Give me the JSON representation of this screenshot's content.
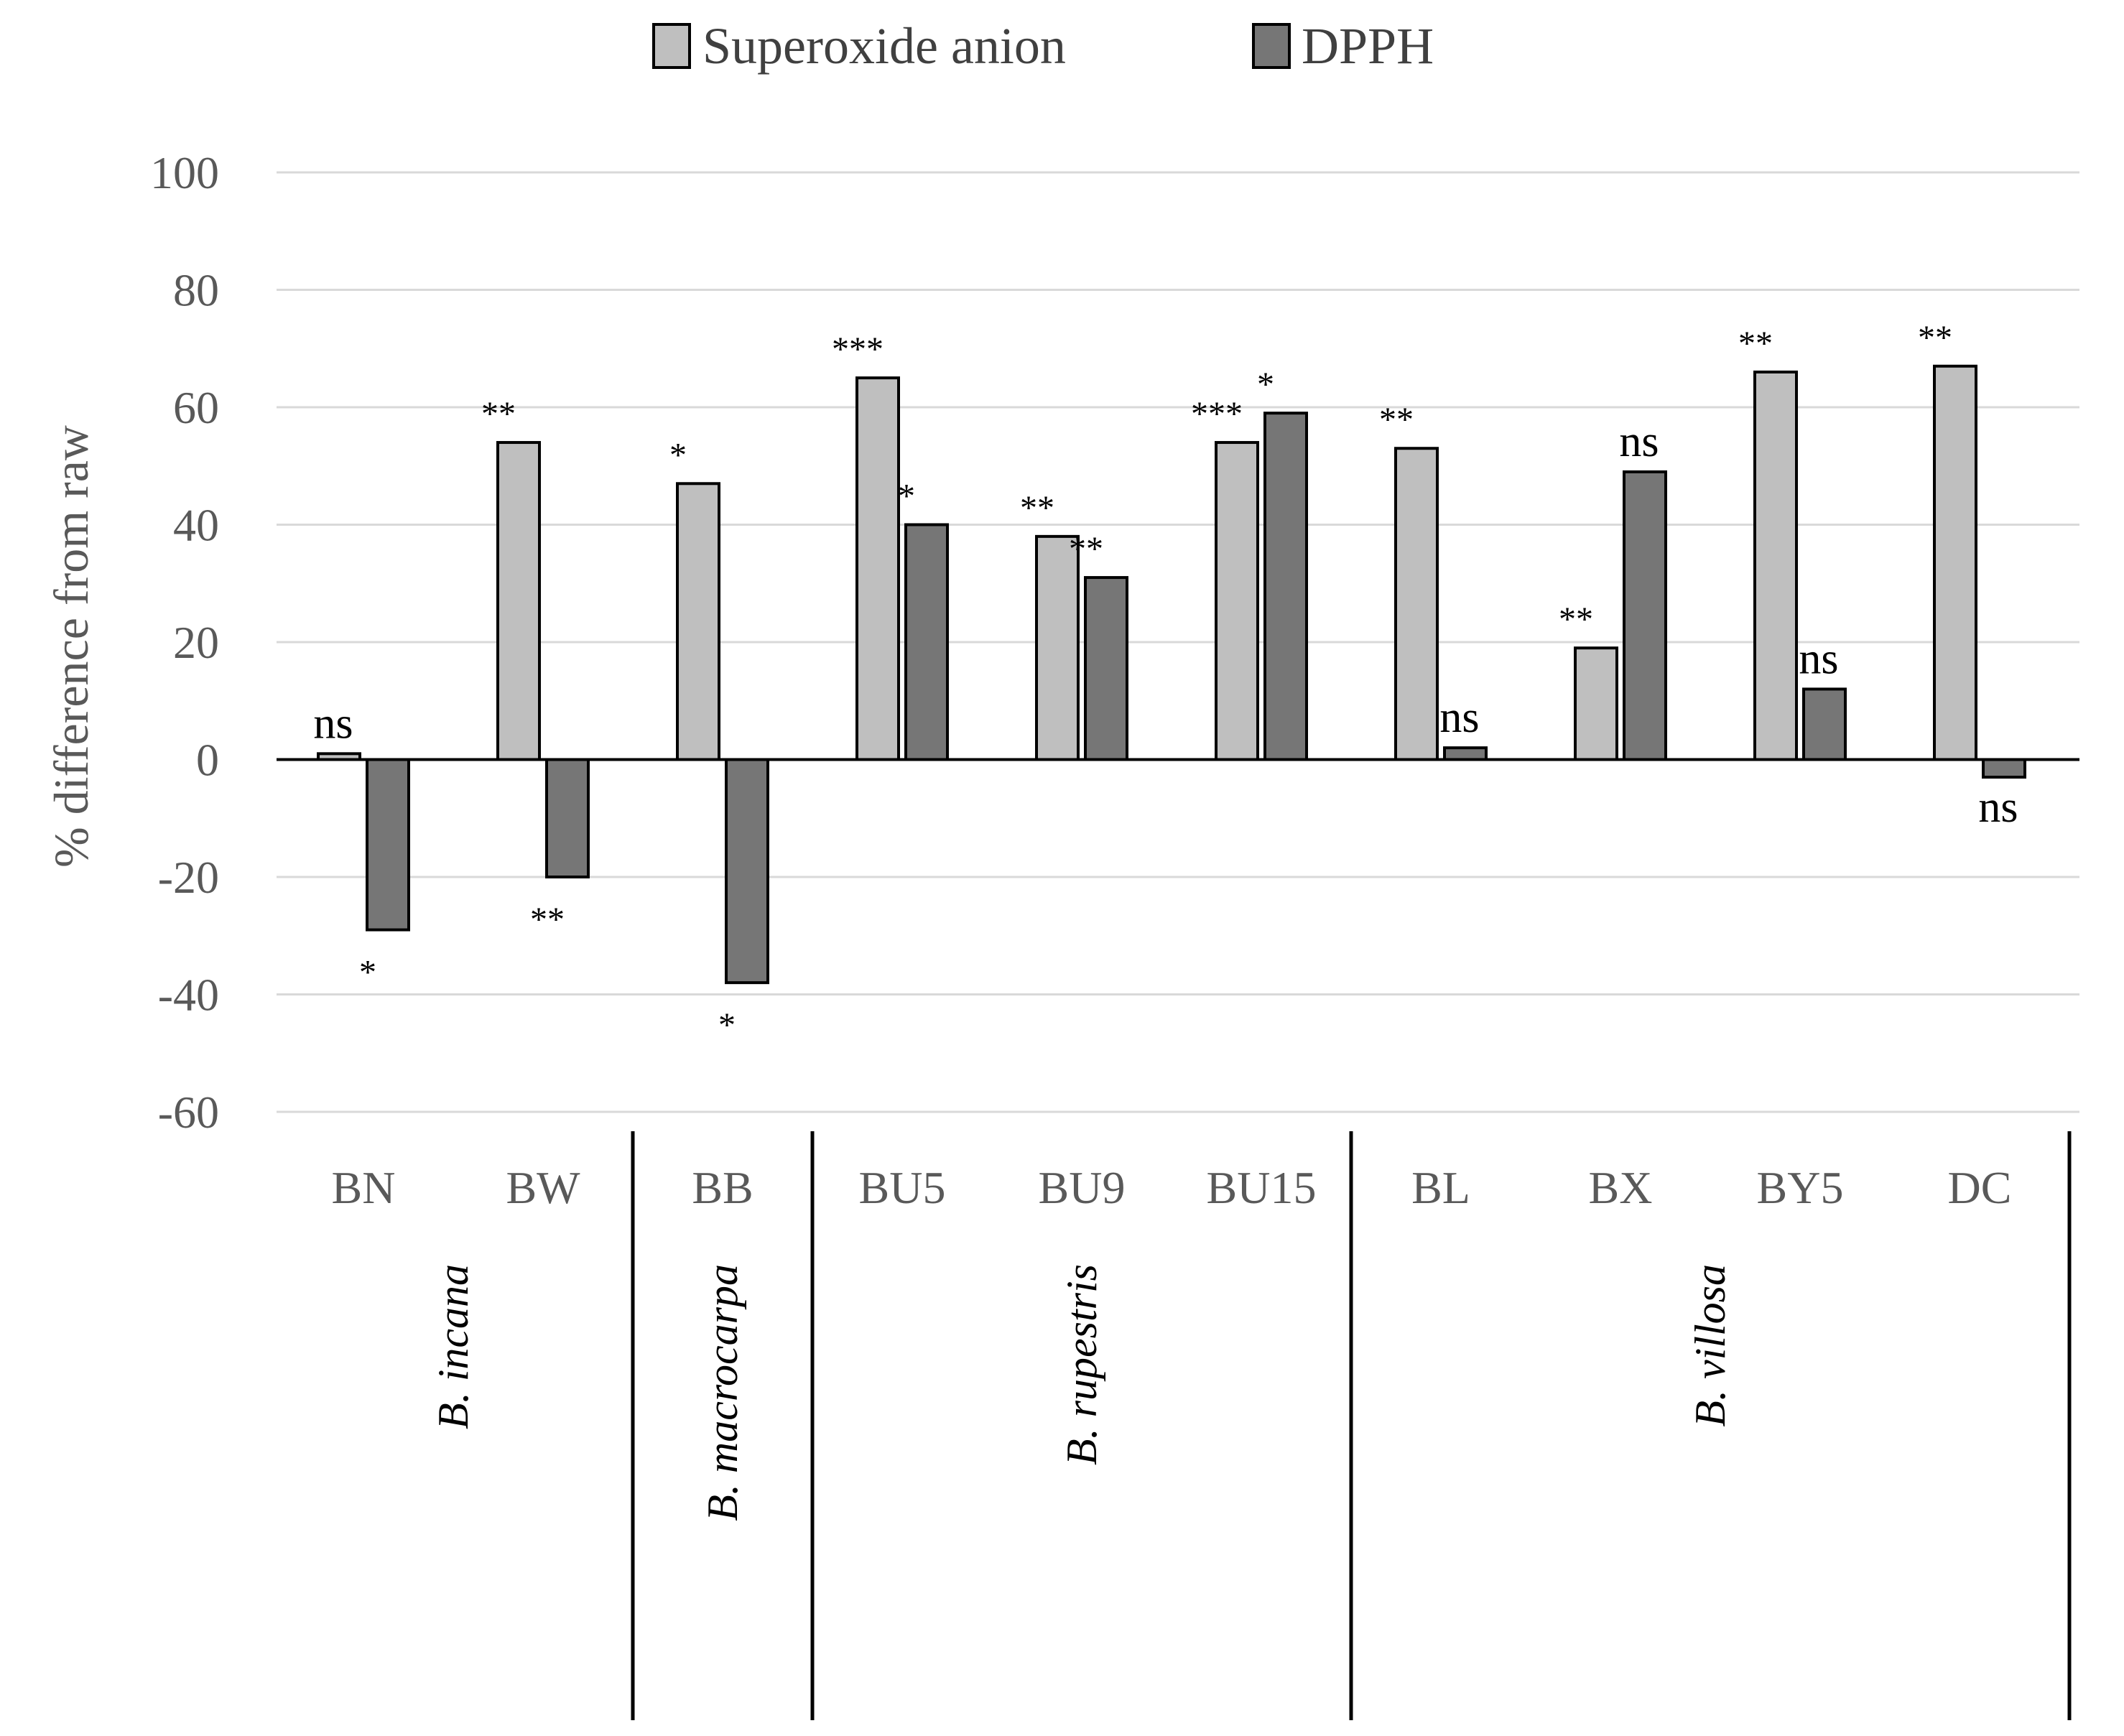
{
  "colors": {
    "superoxide": "#bfbfbf",
    "dpph": "#767676"
  },
  "chart_data": {
    "type": "bar",
    "ylabel": "% difference from raw",
    "ylim": [
      -60,
      100
    ],
    "yticks": [
      100,
      80,
      60,
      40,
      20,
      0,
      -20,
      -40,
      -60
    ],
    "legend_position": "top",
    "categories": [
      "BN",
      "BW",
      "BB",
      "BU5",
      "BU9",
      "BU15",
      "BL",
      "BX",
      "BY5",
      "DC"
    ],
    "series": [
      {
        "name": "Superoxide anion",
        "values": [
          1,
          54,
          47,
          65,
          38,
          54,
          53,
          19,
          66,
          67
        ],
        "significance": [
          "ns",
          "**",
          "*",
          "***",
          "**",
          "***",
          "**",
          "**",
          "**",
          "**"
        ]
      },
      {
        "name": "DPPH",
        "values": [
          -29,
          -20,
          -38,
          40,
          31,
          59,
          2,
          49,
          12,
          -3
        ],
        "significance": [
          "*",
          "**",
          "*",
          "*",
          "**",
          "*",
          "ns",
          "ns",
          "ns",
          "ns"
        ]
      }
    ],
    "groups": [
      {
        "label": "B. incana",
        "members": [
          "BN",
          "BW"
        ]
      },
      {
        "label": "B. macrocarpa",
        "members": [
          "BB"
        ]
      },
      {
        "label": "B. rupestris",
        "members": [
          "BU5",
          "BU9",
          "BU15"
        ]
      },
      {
        "label": "B. villosa",
        "members": [
          "BL",
          "BX",
          "BY5",
          "DC"
        ]
      }
    ]
  }
}
